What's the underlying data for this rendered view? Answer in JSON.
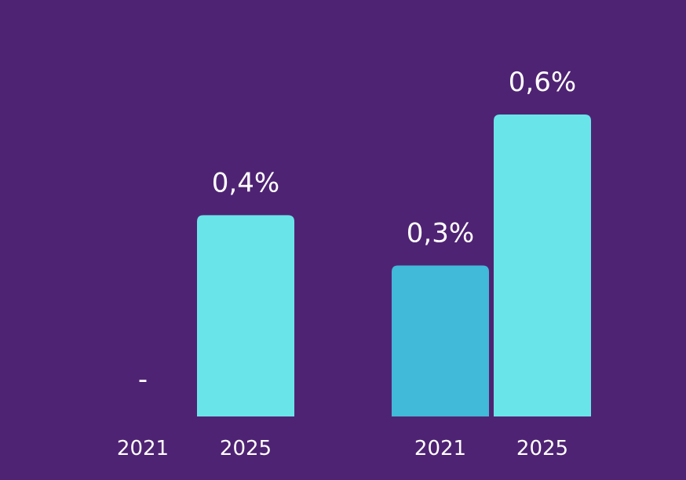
{
  "chart_data": {
    "type": "bar",
    "title": "",
    "xlabel": "",
    "ylabel": "",
    "ylim": [
      0,
      0.6
    ],
    "grid": false,
    "legend": "none",
    "groups": [
      {
        "label": "",
        "bars": [
          {
            "year": "2021",
            "value": null,
            "label": "-",
            "color": "#41b9d8"
          },
          {
            "year": "2025",
            "value": 0.4,
            "label": "0,4%",
            "color": "#69e5ea"
          }
        ]
      },
      {
        "label": "",
        "bars": [
          {
            "year": "2021",
            "value": 0.3,
            "label": "0,3%",
            "color": "#41b9d8"
          },
          {
            "year": "2025",
            "value": 0.6,
            "label": "0,6%",
            "color": "#69e5ea"
          }
        ]
      }
    ]
  }
}
